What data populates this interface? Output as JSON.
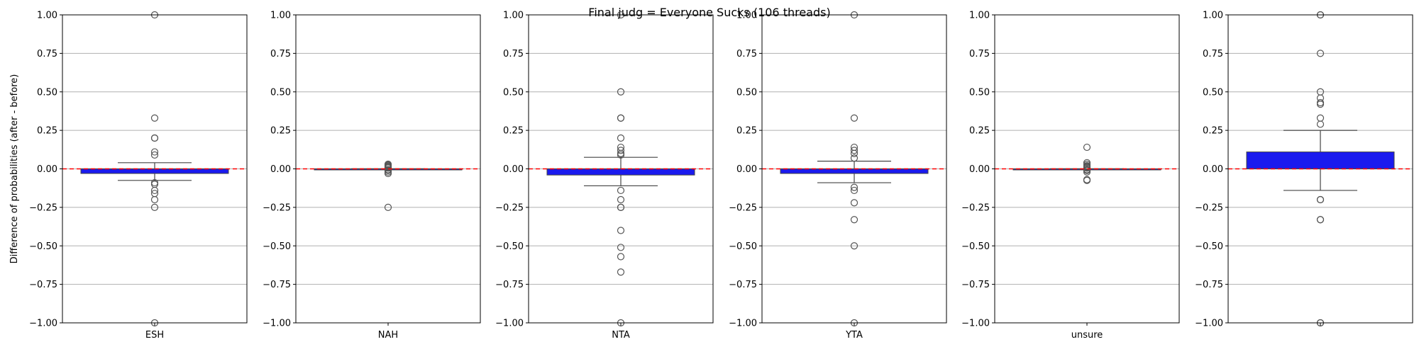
{
  "chart_data": {
    "type": "box",
    "title": "Final judg = Everyone Sucks (106 threads)",
    "ylabel": "Difference of probabilities (after - before)",
    "ylim": [
      -1.0,
      1.0
    ],
    "yticks": [
      "1.00",
      "0.75",
      "0.50",
      "0.25",
      "0.00",
      "−0.25",
      "−0.50",
      "−0.75",
      "−1.00"
    ],
    "ytick_values": [
      1.0,
      0.75,
      0.5,
      0.25,
      0.0,
      -0.25,
      -0.5,
      -0.75,
      -1.0
    ],
    "grid": "horizontal",
    "reference_line": {
      "y": 0.0,
      "color": "#ff0000",
      "style": "dashed"
    },
    "box_color": "#1a1aee",
    "outlier_color": "#555555",
    "panels": [
      {
        "category": "ESH",
        "q1": -0.03,
        "median": 0.0,
        "q3": 0.0,
        "whisker_low": -0.075,
        "whisker_high": 0.04,
        "outliers": [
          1.0,
          0.33,
          0.2,
          0.2,
          0.11,
          0.09,
          -0.09,
          -0.1,
          -0.14,
          -0.16,
          -0.2,
          -0.25,
          -1.0
        ]
      },
      {
        "category": "NAH",
        "q1": 0.0,
        "median": 0.0,
        "q3": 0.0,
        "whisker_low": 0.0,
        "whisker_high": 0.0,
        "outliers": [
          0.03,
          0.025,
          0.02,
          0.015,
          0.01,
          0.005,
          -0.005,
          -0.01,
          -0.02,
          -0.03,
          -0.25
        ]
      },
      {
        "category": "NTA",
        "q1": -0.04,
        "median": 0.0,
        "q3": 0.0,
        "whisker_low": -0.11,
        "whisker_high": 0.075,
        "outliers": [
          1.0,
          0.5,
          0.33,
          0.33,
          0.2,
          0.14,
          0.12,
          0.1,
          0.09,
          -0.14,
          -0.2,
          -0.25,
          -0.25,
          -0.4,
          -0.51,
          -0.57,
          -0.67,
          -1.0
        ]
      },
      {
        "category": "YTA",
        "q1": -0.03,
        "median": 0.0,
        "q3": 0.0,
        "whisker_low": -0.09,
        "whisker_high": 0.05,
        "outliers": [
          1.0,
          0.33,
          0.14,
          0.12,
          0.1,
          0.07,
          -0.12,
          -0.14,
          -0.22,
          -0.33,
          -0.5,
          -1.0
        ]
      },
      {
        "category": "unsure",
        "q1": 0.0,
        "median": 0.0,
        "q3": 0.0,
        "whisker_low": 0.0,
        "whisker_high": 0.0,
        "outliers": [
          0.14,
          0.04,
          0.03,
          0.02,
          0.015,
          0.01,
          0.005,
          -0.005,
          -0.01,
          -0.02,
          -0.07,
          -0.075
        ]
      },
      {
        "category": "",
        "q1": 0.0,
        "median": 0.0,
        "q3": 0.11,
        "whisker_low": -0.14,
        "whisker_high": 0.25,
        "outliers": [
          1.0,
          1.0,
          0.75,
          0.5,
          0.46,
          0.43,
          0.42,
          0.33,
          0.29,
          -0.2,
          -0.2,
          -0.33,
          -0.33,
          -1.0,
          -1.0
        ]
      }
    ]
  }
}
